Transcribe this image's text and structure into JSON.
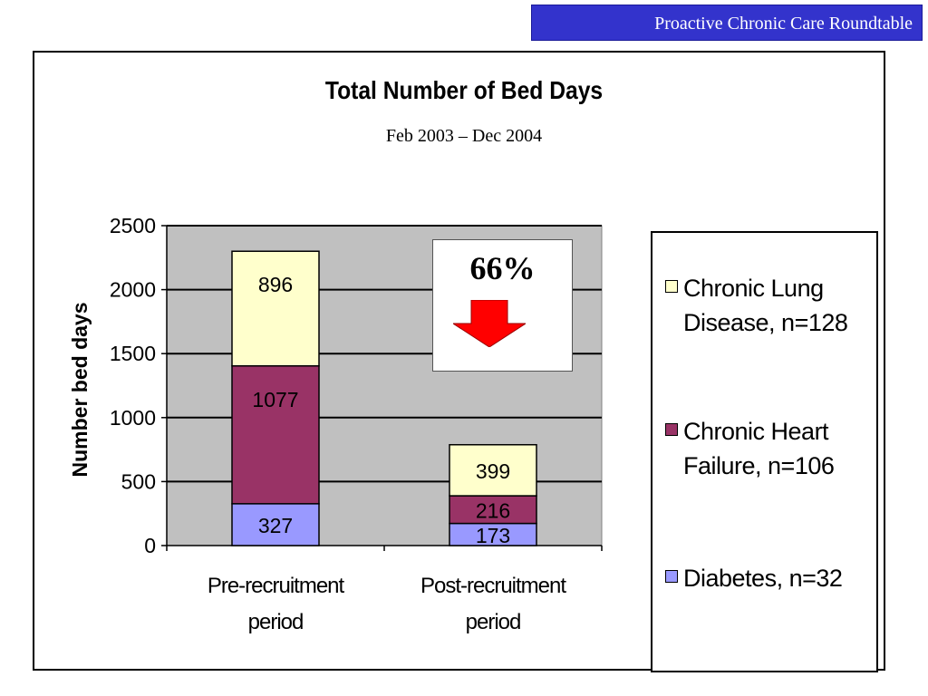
{
  "header": {
    "title": "Proactive Chronic Care Roundtable",
    "color": "#3333cc"
  },
  "callout": {
    "text": "66%",
    "arrow_color": "#ff0000"
  },
  "chart_data": {
    "type": "bar",
    "stacked": true,
    "title": "Total Number of Bed Days",
    "subtitle": "Feb 2003 – Dec 2004",
    "ylabel": "Number bed days",
    "xlabel": "",
    "ylim": [
      0,
      2500
    ],
    "yticks": [
      0,
      500,
      1000,
      1500,
      2000,
      2500
    ],
    "grid": true,
    "legend_position": "right",
    "plot_background": "#c0c0c0",
    "categories": [
      [
        "Pre-recruitment",
        "period"
      ],
      [
        "Post-recruitment",
        "period"
      ]
    ],
    "series": [
      {
        "name": "Diabetes, n=32",
        "values": [
          327,
          173
        ],
        "color": "#9999ff"
      },
      {
        "name": "Chronic Heart Failure, n=106",
        "values": [
          1077,
          216
        ],
        "color": "#993366"
      },
      {
        "name": "Chronic Lung Disease, n=128",
        "values": [
          896,
          399
        ],
        "color": "#ffffcc"
      }
    ],
    "legend": [
      {
        "label": [
          "Chronic Lung",
          "Disease, n=128"
        ],
        "color": "#ffffcc"
      },
      {
        "label": [
          "Chronic Heart",
          "Failure, n=106"
        ],
        "color": "#993366"
      },
      {
        "label": [
          "Diabetes, n=32"
        ],
        "color": "#9999ff"
      }
    ]
  }
}
